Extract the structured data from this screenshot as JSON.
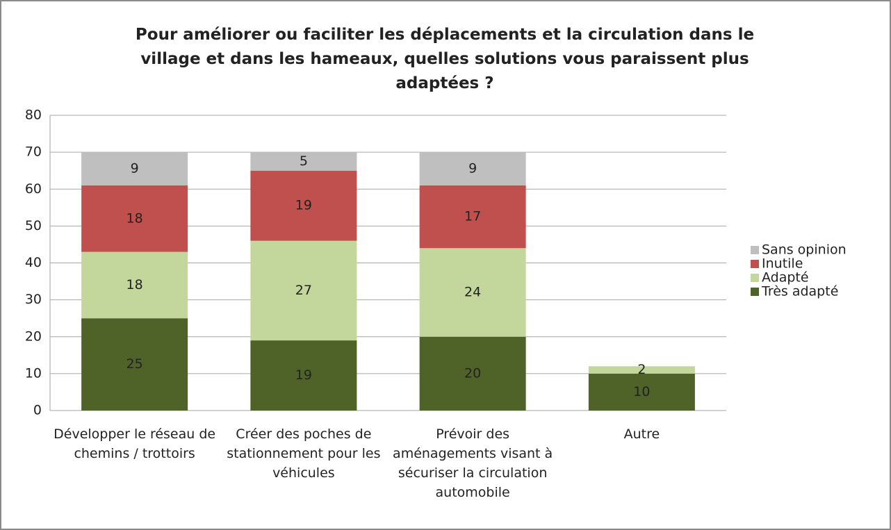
{
  "chart_data": {
    "type": "stacked_bar",
    "title": "Pour améliorer ou faciliter les déplacements et la circulation dans le village et dans les hameaux, quelles solutions vous paraissent plus adaptées ?",
    "categories": [
      "Développer le réseau de chemins / trottoirs",
      "Créer des poches de stationnement pour les véhicules",
      "Prévoir des aménagements visant à sécuriser la circulation automobile",
      "Autre"
    ],
    "series": [
      {
        "name": "Très adapté",
        "color": "#4f6228",
        "values": [
          25,
          19,
          20,
          10
        ]
      },
      {
        "name": "Adapté",
        "color": "#c3d69b",
        "values": [
          18,
          27,
          24,
          2
        ]
      },
      {
        "name": "Inutile",
        "color": "#c0504d",
        "values": [
          18,
          19,
          17,
          null
        ]
      },
      {
        "name": "Sans opinion",
        "color": "#bfbfbf",
        "values": [
          9,
          5,
          9,
          null
        ]
      }
    ],
    "ylim": [
      0,
      80
    ],
    "yticks": [
      0,
      10,
      20,
      30,
      40,
      50,
      60,
      70,
      80
    ],
    "grid": true,
    "legend": "right"
  }
}
